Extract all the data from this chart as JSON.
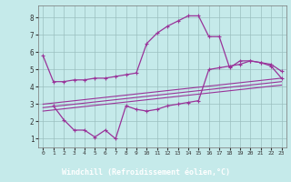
{
  "xlabel": "Windchill (Refroidissement éolien,°C)",
  "xlim": [
    -0.5,
    23.5
  ],
  "ylim": [
    0.5,
    8.7
  ],
  "xticks": [
    0,
    1,
    2,
    3,
    4,
    5,
    6,
    7,
    8,
    9,
    10,
    11,
    12,
    13,
    14,
    15,
    16,
    17,
    18,
    19,
    20,
    21,
    22,
    23
  ],
  "yticks": [
    1,
    2,
    3,
    4,
    5,
    6,
    7,
    8
  ],
  "bg_color": "#c5eaea",
  "line_color": "#993399",
  "xlabel_bg": "#6633aa",
  "xlabel_fg": "#ffffff",
  "grid_color": "#9bbfbf",
  "line1_x": [
    0,
    1,
    2,
    3,
    4,
    5,
    6,
    7,
    8,
    9,
    10,
    11,
    12,
    13,
    14,
    15,
    16,
    17,
    18,
    19,
    20,
    21,
    22,
    23
  ],
  "line1_y": [
    5.8,
    4.3,
    4.3,
    4.4,
    4.4,
    4.5,
    4.5,
    4.6,
    4.7,
    4.8,
    6.5,
    7.1,
    7.5,
    7.8,
    8.1,
    8.1,
    6.9,
    6.9,
    5.1,
    5.5,
    5.5,
    5.4,
    5.3,
    4.9
  ],
  "line2_x": [
    1,
    2,
    3,
    4,
    5,
    6,
    7,
    8,
    9,
    10,
    11,
    12,
    13,
    14,
    15,
    16,
    17,
    18,
    19,
    20,
    21,
    22,
    23
  ],
  "line2_y": [
    2.9,
    2.1,
    1.5,
    1.5,
    1.1,
    1.5,
    1.0,
    2.9,
    2.7,
    2.6,
    2.7,
    2.9,
    3.0,
    3.1,
    3.2,
    5.0,
    5.1,
    5.2,
    5.3,
    5.5,
    5.4,
    5.2,
    4.5
  ],
  "line3_x": [
    0,
    23
  ],
  "line3_y": [
    3.0,
    4.5
  ],
  "line4_x": [
    0,
    23
  ],
  "line4_y": [
    2.8,
    4.3
  ],
  "line5_x": [
    0,
    23
  ],
  "line5_y": [
    2.6,
    4.1
  ]
}
